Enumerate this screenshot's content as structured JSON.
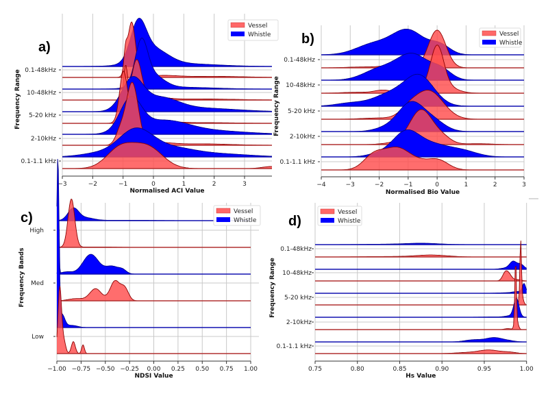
{
  "legend": {
    "vessel": "Vessel",
    "whistle": "Whistle"
  },
  "colors": {
    "vessel_fill": "#ff4d4d",
    "vessel_edge": "#8b0000",
    "whistle_fill": "#0000ff",
    "whistle_edge": "#00008b",
    "grid": "#c8c8c8"
  },
  "chart_data": [
    {
      "type": "area",
      "panel": "a)",
      "title": "",
      "xlabel": "Normalised ACI Value",
      "ylabel": "Frequency Range",
      "xlim": [
        -3,
        3.9
      ],
      "xticks": [
        -3,
        -2,
        -1,
        0,
        1,
        2,
        3
      ],
      "xtick_labels": [
        "−3",
        "−2",
        "−1",
        "0",
        "1",
        "2",
        "3"
      ],
      "categories": [
        "0.1-48kHz",
        "10-48kHz",
        "5-20 kHz",
        "2-10kHz",
        "0.1-1.1 kHz"
      ],
      "legend_position": "top-right",
      "grid": true,
      "series": [
        {
          "name": "Whistle",
          "category": "0.1-48kHz",
          "peak_x": -0.5,
          "components": [
            [
              -0.5,
              0.25,
              1.0
            ],
            [
              -0.05,
              0.5,
              0.45
            ],
            [
              0.8,
              1.2,
              0.08
            ]
          ]
        },
        {
          "name": "Vessel",
          "category": "0.1-48kHz",
          "peak_x": -0.7,
          "components": [
            [
              -0.72,
              0.13,
              1.55
            ],
            [
              -0.92,
              0.05,
              0.5
            ],
            [
              0.3,
              0.5,
              0.05
            ],
            [
              2.0,
              1.0,
              0.03
            ]
          ]
        },
        {
          "name": "Whistle",
          "category": "10-48kHz",
          "peak_x": -0.4,
          "components": [
            [
              -0.4,
              0.2,
              1.1
            ],
            [
              -0.1,
              0.4,
              0.4
            ],
            [
              0.9,
              1.1,
              0.05
            ]
          ]
        },
        {
          "name": "Vessel",
          "category": "10-48kHz",
          "peak_x": -0.55,
          "components": [
            [
              -0.55,
              0.16,
              1.1
            ],
            [
              -0.92,
              0.06,
              0.9
            ],
            [
              0.0,
              0.4,
              0.08
            ],
            [
              1.5,
              1.2,
              0.03
            ]
          ]
        },
        {
          "name": "Whistle",
          "category": "5-20 kHz",
          "peak_x": -0.7,
          "components": [
            [
              -0.7,
              0.35,
              0.85
            ],
            [
              0.2,
              0.6,
              0.35
            ],
            [
              1.5,
              1.2,
              0.1
            ]
          ]
        },
        {
          "name": "Vessel",
          "category": "5-20 kHz",
          "peak_x": -1.0,
          "components": [
            [
              -1.0,
              0.12,
              1.15
            ],
            [
              -0.85,
              0.2,
              0.4
            ],
            [
              0.1,
              0.5,
              0.06
            ],
            [
              1.5,
              1.2,
              0.02
            ]
          ]
        },
        {
          "name": "Whistle",
          "category": "2-10kHz",
          "peak_x": -0.7,
          "components": [
            [
              -0.75,
              0.35,
              0.9
            ],
            [
              0.3,
              0.8,
              0.35
            ],
            [
              1.8,
              1.2,
              0.1
            ]
          ]
        },
        {
          "name": "Vessel",
          "category": "2-10kHz",
          "peak_x": -0.7,
          "components": [
            [
              -0.7,
              0.2,
              1.75
            ],
            [
              -1.1,
              0.15,
              0.35
            ],
            [
              0.2,
              0.4,
              0.06
            ],
            [
              1.5,
              1.0,
              0.04
            ]
          ]
        },
        {
          "name": "Whistle",
          "category": "0.1-1.1 kHz",
          "peak_x": -0.6,
          "components": [
            [
              -0.6,
              0.55,
              0.7
            ],
            [
              0.5,
              0.8,
              0.25
            ],
            [
              2.2,
              1.0,
              0.08
            ],
            [
              -1.8,
              0.6,
              0.1
            ]
          ]
        },
        {
          "name": "Vessel",
          "category": "0.1-1.1 kHz",
          "peak_x": -0.6,
          "components": [
            [
              -1.1,
              0.45,
              0.55
            ],
            [
              -0.2,
              0.5,
              0.6
            ],
            [
              3.9,
              0.3,
              0.06
            ]
          ]
        }
      ]
    },
    {
      "type": "area",
      "panel": "b)",
      "title": "",
      "xlabel": "Normalised Bio Value",
      "ylabel": "Frequency Range",
      "xlim": [
        -4,
        3
      ],
      "xticks": [
        -4,
        -3,
        -2,
        -1,
        0,
        1,
        2,
        3
      ],
      "xtick_labels": [
        "−4",
        "−3",
        "−2",
        "−1",
        "0",
        "1",
        "2",
        "3"
      ],
      "categories": [
        "0.1-48kHz",
        "10-48kHz",
        "5-20 kHz",
        "2-10kHz",
        "0.1-1.1 kHz"
      ],
      "legend_position": "top-right",
      "grid": true,
      "series": [
        {
          "name": "Whistle",
          "category": "0.1-48kHz",
          "peak_x": -1.0,
          "components": [
            [
              -1.0,
              0.55,
              0.8
            ],
            [
              -2.2,
              0.6,
              0.35
            ],
            [
              0.1,
              0.35,
              0.3
            ]
          ]
        },
        {
          "name": "Vessel",
          "category": "0.1-48kHz",
          "peak_x": 0.0,
          "components": [
            [
              0.0,
              0.3,
              1.25
            ],
            [
              -1.6,
              0.3,
              0.07
            ],
            [
              -2.5,
              0.6,
              0.03
            ]
          ]
        },
        {
          "name": "Whistle",
          "category": "10-48kHz",
          "peak_x": -0.9,
          "components": [
            [
              -0.85,
              0.55,
              0.85
            ],
            [
              -2.0,
              0.55,
              0.35
            ],
            [
              0.15,
              0.35,
              0.3
            ]
          ]
        },
        {
          "name": "Vessel",
          "category": "10-48kHz",
          "peak_x": 0.0,
          "components": [
            [
              0.0,
              0.22,
              1.25
            ],
            [
              0.05,
              0.45,
              0.35
            ],
            [
              -1.85,
              0.3,
              0.1
            ],
            [
              -2.8,
              0.5,
              0.03
            ]
          ]
        },
        {
          "name": "Whistle",
          "category": "5-20 kHz",
          "peak_x": -0.6,
          "components": [
            [
              -0.6,
              0.5,
              0.95
            ],
            [
              -1.6,
              0.6,
              0.4
            ],
            [
              -3.0,
              0.5,
              0.1
            ]
          ]
        },
        {
          "name": "Vessel",
          "category": "5-20 kHz",
          "peak_x": -0.3,
          "components": [
            [
              -0.3,
              0.5,
              0.95
            ],
            [
              -1.0,
              0.3,
              0.2
            ],
            [
              -2.0,
              0.6,
              0.04
            ]
          ]
        },
        {
          "name": "Whistle",
          "category": "2-10kHz",
          "peak_x": -0.9,
          "components": [
            [
              -0.9,
              0.45,
              0.95
            ],
            [
              -0.1,
              0.4,
              0.3
            ],
            [
              -1.8,
              0.4,
              0.1
            ]
          ]
        },
        {
          "name": "Vessel",
          "category": "2-10kHz",
          "peak_x": -0.55,
          "components": [
            [
              -0.55,
              0.4,
              1.15
            ],
            [
              0.2,
              0.3,
              0.2
            ],
            [
              1.4,
              0.5,
              0.03
            ],
            [
              -1.5,
              0.4,
              0.05
            ]
          ]
        },
        {
          "name": "Whistle",
          "category": "0.1-1.1 kHz",
          "peak_x": -1.05,
          "components": [
            [
              -1.1,
              0.45,
              0.75
            ],
            [
              -0.2,
              0.6,
              0.4
            ],
            [
              0.9,
              0.5,
              0.18
            ],
            [
              -2.0,
              0.4,
              0.1
            ]
          ]
        },
        {
          "name": "Vessel",
          "category": "0.1-1.1 kHz",
          "peak_x": -1.4,
          "components": [
            [
              -1.4,
              0.45,
              0.7
            ],
            [
              -2.2,
              0.35,
              0.45
            ],
            [
              0.05,
              0.35,
              0.3
            ],
            [
              -0.6,
              0.4,
              0.2
            ]
          ]
        }
      ]
    },
    {
      "type": "area",
      "panel": "c)",
      "title": "",
      "xlabel": "NDSI Value",
      "ylabel": "Frequency Bands",
      "xlim": [
        -1.0,
        1.0
      ],
      "xticks": [
        -1.0,
        -0.75,
        -0.5,
        -0.25,
        0.0,
        0.25,
        0.5,
        0.75,
        1.0
      ],
      "xtick_labels": [
        "−1.00",
        "−0.75",
        "−0.50",
        "−0.25",
        "0.00",
        "0.25",
        "0.50",
        "0.75",
        "1.00"
      ],
      "categories": [
        "High",
        "Med",
        "Low"
      ],
      "legend_position": "top-right",
      "grid": true,
      "series": [
        {
          "name": "Whistle",
          "category": "High",
          "peak_x": -0.83,
          "components": [
            [
              -0.83,
              0.055,
              0.55
            ],
            [
              -0.7,
              0.08,
              0.12
            ],
            [
              -0.3,
              0.3,
              0.02
            ]
          ]
        },
        {
          "name": "Vessel",
          "category": "High",
          "peak_x": -0.85,
          "components": [
            [
              -0.85,
              0.035,
              2.2
            ],
            [
              -0.6,
              0.2,
              0.02
            ]
          ]
        },
        {
          "name": "Whistle",
          "category": "Med",
          "peak_x": -0.65,
          "components": [
            [
              -0.65,
              0.08,
              0.9
            ],
            [
              -0.43,
              0.07,
              0.35
            ],
            [
              -0.9,
              0.06,
              0.1
            ],
            [
              -0.32,
              0.04,
              0.15
            ],
            [
              -0.98,
              0.005,
              2.4
            ]
          ]
        },
        {
          "name": "Vessel",
          "category": "Med",
          "peak_x": -0.35,
          "components": [
            [
              -0.6,
              0.06,
              0.55
            ],
            [
              -0.4,
              0.05,
              0.9
            ],
            [
              -0.3,
              0.04,
              0.55
            ],
            [
              -0.8,
              0.08,
              0.1
            ]
          ]
        },
        {
          "name": "Whistle",
          "category": "Low",
          "peak_x": -0.99,
          "components": [
            [
              -0.99,
              0.012,
              7.6
            ],
            [
              -0.95,
              0.03,
              0.6
            ],
            [
              -0.85,
              0.06,
              0.1
            ]
          ]
        },
        {
          "name": "Vessel",
          "category": "Low",
          "peak_x": -0.97,
          "components": [
            [
              -0.97,
              0.018,
              3.0
            ],
            [
              -0.93,
              0.02,
              0.6
            ],
            [
              -0.83,
              0.02,
              0.55
            ],
            [
              -0.73,
              0.014,
              0.4
            ]
          ]
        }
      ]
    },
    {
      "type": "area",
      "panel": "d)",
      "title": "",
      "xlabel": "Hs Value",
      "ylabel": "Frequency Range",
      "xlim": [
        0.75,
        1.0
      ],
      "xticks": [
        0.75,
        0.8,
        0.85,
        0.9,
        0.95,
        1.0
      ],
      "xtick_labels": [
        "0.75",
        "0.80",
        "0.85",
        "0.90",
        "0.95",
        "1.00"
      ],
      "categories": [
        "0.1-48kHz",
        "10-48kHz",
        "5-20 kHz",
        "2-10kHz",
        "0.1-1.1 kHz"
      ],
      "legend_position": "top-left",
      "grid": true,
      "series": [
        {
          "name": "Whistle",
          "category": "0.1-48kHz",
          "peak_x": 0.877,
          "components": [
            [
              0.877,
              0.018,
              0.12
            ],
            [
              0.85,
              0.04,
              0.06
            ]
          ]
        },
        {
          "name": "Vessel",
          "category": "0.1-48kHz",
          "peak_x": 0.883,
          "components": [
            [
              0.883,
              0.015,
              0.15
            ],
            [
              0.9,
              0.015,
              0.08
            ],
            [
              0.85,
              0.04,
              0.06
            ]
          ]
        },
        {
          "name": "Whistle",
          "category": "10-48kHz",
          "peak_x": 0.984,
          "components": [
            [
              0.984,
              0.004,
              0.9
            ],
            [
              0.993,
              0.004,
              0.6
            ],
            [
              0.975,
              0.006,
              0.15
            ]
          ]
        },
        {
          "name": "Vessel",
          "category": "10-48kHz",
          "peak_x": 0.978,
          "components": [
            [
              0.978,
              0.004,
              0.95
            ],
            [
              0.974,
              0.003,
              0.5
            ],
            [
              0.99,
              0.004,
              0.15
            ]
          ]
        },
        {
          "name": "Whistle",
          "category": "5-20 kHz",
          "peak_x": 0.997,
          "components": [
            [
              0.997,
              0.002,
              1.1
            ],
            [
              0.99,
              0.006,
              0.2
            ],
            [
              0.975,
              0.01,
              0.06
            ]
          ]
        },
        {
          "name": "Vessel",
          "category": "5-20 kHz",
          "peak_x": 0.993,
          "components": [
            [
              0.993,
              0.0009,
              7.0
            ],
            [
              0.994,
              0.002,
              1.2
            ]
          ]
        },
        {
          "name": "Whistle",
          "category": "2-10kHz",
          "peak_x": 0.988,
          "components": [
            [
              0.988,
              0.003,
              2.2
            ],
            [
              0.983,
              0.007,
              0.2
            ],
            [
              0.96,
              0.015,
              0.04
            ]
          ]
        },
        {
          "name": "Vessel",
          "category": "2-10kHz",
          "peak_x": 0.987,
          "components": [
            [
              0.987,
              0.0009,
              7.6
            ],
            [
              0.988,
              0.002,
              1.2
            ],
            [
              0.978,
              0.004,
              0.12
            ]
          ]
        },
        {
          "name": "Whistle",
          "category": "0.1-1.1 kHz",
          "peak_x": 0.962,
          "components": [
            [
              0.962,
              0.01,
              0.52
            ],
            [
              0.937,
              0.01,
              0.25
            ],
            [
              0.98,
              0.007,
              0.1
            ]
          ]
        },
        {
          "name": "Vessel",
          "category": "0.1-1.1 kHz",
          "peak_x": 0.956,
          "components": [
            [
              0.956,
              0.012,
              0.42
            ],
            [
              0.93,
              0.014,
              0.12
            ],
            [
              0.98,
              0.008,
              0.15
            ]
          ]
        }
      ]
    }
  ]
}
